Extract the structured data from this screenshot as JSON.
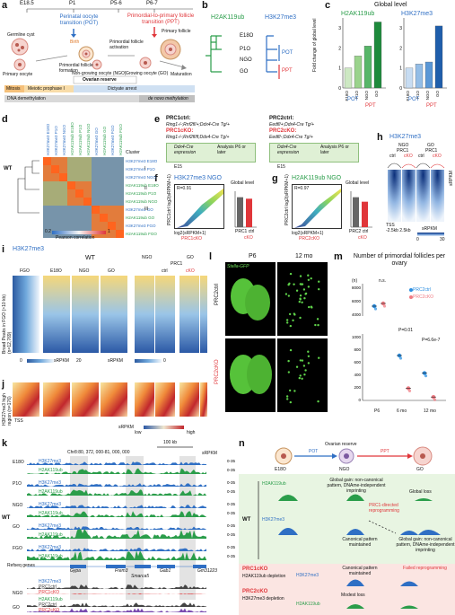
{
  "panels": [
    "a",
    "b",
    "c",
    "d",
    "e",
    "f",
    "g",
    "h",
    "i",
    "j",
    "k",
    "l",
    "m",
    "n"
  ],
  "a": {
    "stages": [
      "E18.5",
      "P1",
      "P5-6",
      "P6-7"
    ],
    "pot_label": "Perinatal oocyte transition (POT)",
    "ppt_label": "Primordial-to-primary follicle transition (PPT)",
    "cells": [
      "Germline cyst",
      "Primary oocyte",
      "Birth",
      "Primordial follicle formation",
      "Primordial follicle activation",
      "Primary follicle",
      "Maturation",
      "Non-growing oocyte (NGO)",
      "Growing oocyte (GO)",
      "Ovarian reserve"
    ],
    "bars": [
      "Mitosis",
      "Meiotic prophase I",
      "Dictyate arrest",
      "DNA demethylation",
      "de novo methylation"
    ]
  },
  "b": {
    "h2ak": "H2AK119ub",
    "h3k": "H3K27me3",
    "leaves": [
      "E18O",
      "P1O",
      "NGO",
      "GO"
    ],
    "pot": "POT",
    "ppt": "PPT"
  },
  "c": {
    "title": "Global level",
    "ylabel": "Fold change of global level",
    "left_title": "H2AK119ub",
    "right_title": "H3K27me3",
    "pot": "POT",
    "ppt": "PPT"
  },
  "chart_data": [
    {
      "type": "bar",
      "title": "H2AK119ub",
      "categories": [
        "E18O",
        "P1O",
        "NGO",
        "GO"
      ],
      "values": [
        1.0,
        1.6,
        2.1,
        3.3
      ],
      "ylim": [
        0,
        3.5
      ],
      "yticks": [
        "0",
        "1",
        "2",
        "3"
      ],
      "colors": [
        "#cde8c3",
        "#9ad38c",
        "#57b668",
        "#1e8a3c"
      ]
    },
    {
      "type": "bar",
      "title": "H3K27me3",
      "categories": [
        "E18O",
        "P1O",
        "NGO",
        "GO"
      ],
      "values": [
        1.0,
        1.2,
        1.3,
        3.1
      ],
      "ylim": [
        0,
        3.5
      ],
      "yticks": [
        "0",
        "1",
        "2",
        "3"
      ],
      "colors": [
        "#c7dcf2",
        "#93bde6",
        "#5a97d6",
        "#1f5eab"
      ]
    },
    {
      "type": "bar",
      "title": "f Global level",
      "categories": [
        "PRC1 ctrl",
        "cKO"
      ],
      "values": [
        1.0,
        0.95
      ],
      "ylim": [
        0,
        1.2
      ]
    },
    {
      "type": "bar",
      "title": "g Global level",
      "categories": [
        "PRC2 ctrl",
        "cKO"
      ],
      "values": [
        1.0,
        0.85
      ],
      "ylim": [
        0,
        1.2
      ]
    },
    {
      "type": "scatter",
      "title": "Number of primordial follicles per ovary",
      "categories": [
        "P6",
        "6 mo",
        "12 mo"
      ],
      "series": [
        {
          "name": "PRC2ctrl",
          "values": [
            5200,
            700,
            420
          ]
        },
        {
          "name": "PRC2cKO",
          "values": [
            5600,
            180,
            40
          ]
        }
      ],
      "pvalues": [
        "n.s.",
        "P=0.01",
        "P=6.6e-7"
      ]
    }
  ],
  "d": {
    "legend_title": "Cluster",
    "clusters": [
      "I",
      "II",
      "III"
    ],
    "wt": "WT",
    "scale_label": "Pearson correlation",
    "scale_min": "0.2",
    "scale_max": "1",
    "rows": [
      "H3K27me3 E18O",
      "H3K27me3 P1O",
      "H3K27me3 NGO",
      "H2AK119ub E18O",
      "H2AK119ub P1O",
      "H2AK119ub NGO",
      "H3K27me3 GO",
      "H2AK119ub GO",
      "H3K27me3 FGO",
      "H2AK119ub FGO"
    ]
  },
  "e": {
    "prc1ctrl": "PRC1ctrl:",
    "prc1ctrl_geno": "Ring1-/-;Rnf2fl/+;Ddx4-Cre Tg/+",
    "prc1cko": "PRC1cKO:",
    "prc1cko_geno": "Ring1-/-;Rnf2fl/fl;Ddx4-Cre Tg/+",
    "prc2ctrl": "PRC2ctrl:",
    "prc2ctrl_geno": "Eedfl/+;Ddx4-Cre Tg/+",
    "prc2cko": "PRC2cKO:",
    "prc2cko_geno": "Eedfl/-;Ddx4-Cre Tg/+",
    "cre1": "Ddx4-Cre expression",
    "cre2": "Ddx4-Cre expression",
    "analysis": "Analysis P6 or later",
    "e15": "E15"
  },
  "f": {
    "title": "H3K27me3 NGO",
    "r": "R=0.91",
    "xlabel": "log2(sRPKM+1)",
    "ylabel": "PRC1ctrl log2(sRPKM+1)",
    "xlabel2": "PRC1cKO",
    "global": "Global level",
    "ctrl": "PRC1 ctrl",
    "cko": "cKO",
    "ylab2": "Fold change"
  },
  "g": {
    "title": "H2AK119ub NGO",
    "r": "R=0.97",
    "xlabel": "log2(sRPKM+1)",
    "ylabel": "PRC2ctrl log2(sRPKM+1)",
    "xlabel2": "PRC2cKO",
    "global": "Global level",
    "ctrl": "PRC2 ctrl",
    "cko": "cKO",
    "ylab2": "Fold change"
  },
  "h": {
    "title": "H3K27me3",
    "ngo": "NGO",
    "go": "GO",
    "prc": "PRC1",
    "ctrl": "ctrl",
    "cko": "cKO",
    "tss": "TSS",
    "kb": "-2.5kb  2.5kb",
    "srpkm": "sRPKM",
    "scale_min": "0",
    "scale_max": "30"
  },
  "i": {
    "title": "H3K27me3",
    "wt": "WT",
    "cols": [
      "FGO",
      "E18O",
      "NGO",
      "GO"
    ],
    "ngo": "NGO",
    "go": "GO",
    "prc": "PRC1",
    "ctrl": "ctrl",
    "cko": "cKO",
    "ylabel": "Broad Peaks in FGO (>10 kb) (n=12,769)",
    "srpkm": "sRPKM",
    "s0": "0",
    "s20": "20"
  },
  "j": {
    "ylabel": "H3K27me3 high region (n=176)",
    "tss": "TSS",
    "low": "low",
    "high": "high",
    "srpkm": "sRPKM"
  },
  "k": {
    "coords": "Chr8:80, 372, 000-81, 000, 000",
    "scale": "100 kb",
    "srpkm": "sRPKM",
    "refseq": "Refseq genes",
    "genes": [
      "Gypa",
      "Frem3",
      "Smarca5",
      "Gab1",
      "Gm31223"
    ],
    "groups": [
      "E18O",
      "P1O",
      "NGO",
      "GO",
      "FGO"
    ],
    "marks": [
      "H3K27me3",
      "H2AK119ub"
    ],
    "wt": "WT",
    "bottom_marks": [
      "H3K27me3",
      "H2AK119ub"
    ],
    "bottom_tracks": [
      "PRC1ctrl",
      "PRC1cKO",
      "PRC2ctrl",
      "PRC2cKO"
    ],
    "ranges": [
      "0-35",
      "0-35",
      "0-35",
      "0-35",
      "0-35",
      "0-35",
      "0-35",
      "0-35",
      "0-35",
      "0-35",
      "0-35",
      "0-60",
      "0-60",
      "0-60"
    ]
  },
  "l": {
    "p6": "P6",
    "mo12": "12 mo",
    "stella": "Stella-GFP",
    "ctrl": "PRC2ctrl",
    "cko": "PRC2cKO"
  },
  "m": {
    "title": "Number of primordial follicles per ovary",
    "ylabel": "(n)",
    "yticks": [
      "0",
      "200",
      "400",
      "600",
      "800",
      "1000",
      "4000",
      "6000",
      "8000"
    ],
    "legend": [
      "PRC2ctrl",
      "PRC2cKO"
    ],
    "pvals": [
      "n.s.",
      "P=0.01",
      "P=6.6e-7"
    ],
    "xcats": [
      "P6",
      "6 mo",
      "12 mo"
    ]
  },
  "n": {
    "stages": [
      "E18O",
      "NGO",
      "GO"
    ],
    "pot": "POT",
    "ppt": "PPT",
    "reserve": "Ovarian reserve",
    "wt": "WT",
    "h2ak": "H2AK119ub",
    "h3k": "H3K27me3",
    "global_gain": "Global gain: non-canonical pattern, DNAme-independent imprinting",
    "global_loss": "Global loss",
    "prc1dir": "PRC1-directed reprogramming",
    "canon": "Canonical pattern maintained",
    "global_gain2": "Global gain: non-canonical pattern, DNAme-independent imprinting",
    "prc1cko": "PRC1cKO",
    "prc1cko_sub": "H2AK119ub depletion",
    "prc2cko": "PRC2cKO",
    "prc2cko_sub": "H3K27me3 depletion",
    "canon2": "Canonical pattern maintained",
    "failed": "Failed reprogramming",
    "modest": "Modest loss"
  }
}
